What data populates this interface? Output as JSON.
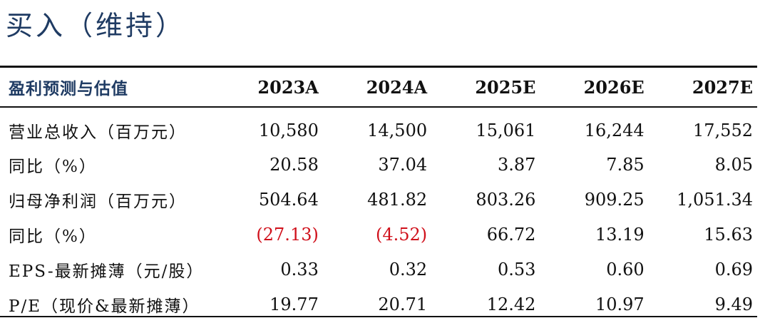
{
  "rating": "买入（维持）",
  "table": {
    "header_label": "盈利预测与估值",
    "years": [
      "2023A",
      "2024A",
      "2025E",
      "2026E",
      "2027E"
    ],
    "rows": [
      {
        "label": "营业总收入（百万元）",
        "values": [
          "10,580",
          "14,500",
          "15,061",
          "16,244",
          "17,552"
        ]
      },
      {
        "label": "同比（%）",
        "values": [
          "20.58",
          "37.04",
          "3.87",
          "7.85",
          "8.05"
        ]
      },
      {
        "label": "归母净利润（百万元）",
        "values": [
          "504.64",
          "481.82",
          "803.26",
          "909.25",
          "1,051.34"
        ]
      },
      {
        "label": "同比（%）",
        "values": [
          "(27.13)",
          "(4.52)",
          "66.72",
          "13.19",
          "15.63"
        ]
      },
      {
        "label": "EPS-最新摊薄（元/股）",
        "values": [
          "0.33",
          "0.32",
          "0.53",
          "0.60",
          "0.69"
        ]
      },
      {
        "label": "P/E（现价&最新摊薄）",
        "values": [
          "19.77",
          "20.71",
          "12.42",
          "10.97",
          "9.49"
        ]
      }
    ],
    "negative_color": "#d0101b",
    "title_color": "#1f3b63"
  }
}
